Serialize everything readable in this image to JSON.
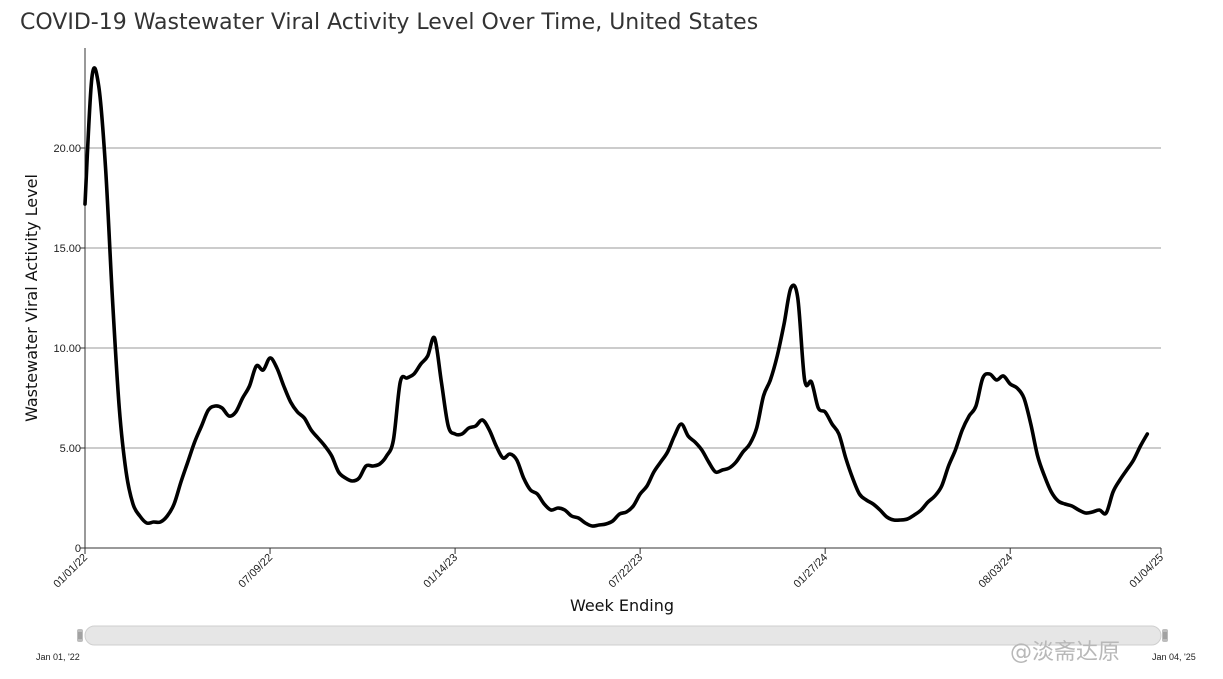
{
  "chart_data": {
    "type": "line",
    "title": "COVID-19 Wastewater Viral Activity Level Over Time, United States",
    "xlabel": "Week Ending",
    "ylabel": "Wastewater Viral Activity Level",
    "ylim": [
      0,
      25
    ],
    "yticks": [
      0,
      5,
      10,
      15,
      20
    ],
    "ytick_labels": [
      "0",
      "5.00",
      "10.00",
      "15.00",
      "20.00"
    ],
    "xlim": [
      "2022-01-01",
      "2025-01-04"
    ],
    "xticks": [
      "2022-01-01",
      "2022-07-09",
      "2023-01-14",
      "2023-07-22",
      "2024-01-27",
      "2024-08-03",
      "2025-01-04"
    ],
    "xtick_labels": [
      "01/01/22",
      "07/09/22",
      "01/14/23",
      "07/22/23",
      "01/27/24",
      "08/03/24",
      "01/04/25"
    ],
    "grid": true,
    "series": [
      {
        "name": "",
        "color": "#000000",
        "points": [
          [
            "2022-01-01",
            17.2
          ],
          [
            "2022-01-08",
            23.5
          ],
          [
            "2022-01-15",
            23.1
          ],
          [
            "2022-01-22",
            19.0
          ],
          [
            "2022-01-29",
            12.5
          ],
          [
            "2022-02-05",
            7.0
          ],
          [
            "2022-02-12",
            3.8
          ],
          [
            "2022-02-19",
            2.2
          ],
          [
            "2022-02-26",
            1.6
          ],
          [
            "2022-03-05",
            1.25
          ],
          [
            "2022-03-12",
            1.3
          ],
          [
            "2022-03-19",
            1.3
          ],
          [
            "2022-03-26",
            1.6
          ],
          [
            "2022-04-02",
            2.2
          ],
          [
            "2022-04-09",
            3.3
          ],
          [
            "2022-04-16",
            4.3
          ],
          [
            "2022-04-23",
            5.3
          ],
          [
            "2022-04-30",
            6.1
          ],
          [
            "2022-05-07",
            6.9
          ],
          [
            "2022-05-14",
            7.1
          ],
          [
            "2022-05-21",
            7.0
          ],
          [
            "2022-05-28",
            6.6
          ],
          [
            "2022-06-04",
            6.8
          ],
          [
            "2022-06-11",
            7.5
          ],
          [
            "2022-06-18",
            8.1
          ],
          [
            "2022-06-25",
            9.1
          ],
          [
            "2022-07-02",
            8.9
          ],
          [
            "2022-07-09",
            9.5
          ],
          [
            "2022-07-16",
            9.0
          ],
          [
            "2022-07-23",
            8.1
          ],
          [
            "2022-07-30",
            7.3
          ],
          [
            "2022-08-06",
            6.8
          ],
          [
            "2022-08-13",
            6.5
          ],
          [
            "2022-08-20",
            5.9
          ],
          [
            "2022-08-27",
            5.5
          ],
          [
            "2022-09-03",
            5.1
          ],
          [
            "2022-09-10",
            4.6
          ],
          [
            "2022-09-17",
            3.8
          ],
          [
            "2022-09-24",
            3.5
          ],
          [
            "2022-10-01",
            3.35
          ],
          [
            "2022-10-08",
            3.5
          ],
          [
            "2022-10-15",
            4.1
          ],
          [
            "2022-10-22",
            4.1
          ],
          [
            "2022-10-29",
            4.2
          ],
          [
            "2022-11-05",
            4.6
          ],
          [
            "2022-11-12",
            5.4
          ],
          [
            "2022-11-19",
            8.3
          ],
          [
            "2022-11-26",
            8.5
          ],
          [
            "2022-12-03",
            8.7
          ],
          [
            "2022-12-10",
            9.2
          ],
          [
            "2022-12-17",
            9.6
          ],
          [
            "2022-12-24",
            10.5
          ],
          [
            "2022-12-31",
            8.3
          ],
          [
            "2023-01-07",
            6.1
          ],
          [
            "2023-01-14",
            5.7
          ],
          [
            "2023-01-21",
            5.7
          ],
          [
            "2023-01-28",
            6.0
          ],
          [
            "2023-02-04",
            6.1
          ],
          [
            "2023-02-11",
            6.4
          ],
          [
            "2023-02-18",
            5.9
          ],
          [
            "2023-02-25",
            5.1
          ],
          [
            "2023-03-04",
            4.5
          ],
          [
            "2023-03-11",
            4.7
          ],
          [
            "2023-03-18",
            4.4
          ],
          [
            "2023-03-25",
            3.5
          ],
          [
            "2023-04-01",
            2.9
          ],
          [
            "2023-04-08",
            2.7
          ],
          [
            "2023-04-15",
            2.2
          ],
          [
            "2023-04-22",
            1.9
          ],
          [
            "2023-04-29",
            2.0
          ],
          [
            "2023-05-06",
            1.9
          ],
          [
            "2023-05-13",
            1.6
          ],
          [
            "2023-05-20",
            1.5
          ],
          [
            "2023-05-27",
            1.25
          ],
          [
            "2023-06-03",
            1.1
          ],
          [
            "2023-06-10",
            1.15
          ],
          [
            "2023-06-17",
            1.2
          ],
          [
            "2023-06-24",
            1.35
          ],
          [
            "2023-07-01",
            1.7
          ],
          [
            "2023-07-08",
            1.8
          ],
          [
            "2023-07-15",
            2.1
          ],
          [
            "2023-07-22",
            2.7
          ],
          [
            "2023-07-29",
            3.1
          ],
          [
            "2023-08-05",
            3.8
          ],
          [
            "2023-08-12",
            4.3
          ],
          [
            "2023-08-19",
            4.8
          ],
          [
            "2023-08-26",
            5.6
          ],
          [
            "2023-09-02",
            6.2
          ],
          [
            "2023-09-09",
            5.6
          ],
          [
            "2023-09-16",
            5.3
          ],
          [
            "2023-09-23",
            4.9
          ],
          [
            "2023-09-30",
            4.3
          ],
          [
            "2023-10-07",
            3.8
          ],
          [
            "2023-10-14",
            3.9
          ],
          [
            "2023-10-21",
            4.0
          ],
          [
            "2023-10-28",
            4.3
          ],
          [
            "2023-11-04",
            4.8
          ],
          [
            "2023-11-11",
            5.2
          ],
          [
            "2023-11-18",
            6.0
          ],
          [
            "2023-11-25",
            7.6
          ],
          [
            "2023-12-02",
            8.4
          ],
          [
            "2023-12-09",
            9.6
          ],
          [
            "2023-12-16",
            11.2
          ],
          [
            "2023-12-23",
            13.0
          ],
          [
            "2023-12-30",
            12.5
          ],
          [
            "2024-01-06",
            8.4
          ],
          [
            "2024-01-13",
            8.3
          ],
          [
            "2024-01-20",
            7.0
          ],
          [
            "2024-01-27",
            6.8
          ],
          [
            "2024-02-03",
            6.2
          ],
          [
            "2024-02-10",
            5.7
          ],
          [
            "2024-02-17",
            4.5
          ],
          [
            "2024-02-24",
            3.5
          ],
          [
            "2024-03-02",
            2.7
          ],
          [
            "2024-03-09",
            2.4
          ],
          [
            "2024-03-16",
            2.2
          ],
          [
            "2024-03-23",
            1.9
          ],
          [
            "2024-03-30",
            1.55
          ],
          [
            "2024-04-06",
            1.4
          ],
          [
            "2024-04-13",
            1.4
          ],
          [
            "2024-04-20",
            1.45
          ],
          [
            "2024-04-27",
            1.65
          ],
          [
            "2024-05-04",
            1.9
          ],
          [
            "2024-05-11",
            2.3
          ],
          [
            "2024-05-18",
            2.6
          ],
          [
            "2024-05-25",
            3.1
          ],
          [
            "2024-06-01",
            4.1
          ],
          [
            "2024-06-08",
            4.9
          ],
          [
            "2024-06-15",
            5.9
          ],
          [
            "2024-06-22",
            6.6
          ],
          [
            "2024-06-29",
            7.1
          ],
          [
            "2024-07-06",
            8.5
          ],
          [
            "2024-07-13",
            8.7
          ],
          [
            "2024-07-20",
            8.4
          ],
          [
            "2024-07-27",
            8.6
          ],
          [
            "2024-08-03",
            8.2
          ],
          [
            "2024-08-10",
            8.0
          ],
          [
            "2024-08-17",
            7.5
          ],
          [
            "2024-08-24",
            6.2
          ],
          [
            "2024-08-31",
            4.6
          ],
          [
            "2024-09-07",
            3.6
          ],
          [
            "2024-09-14",
            2.8
          ],
          [
            "2024-09-21",
            2.35
          ],
          [
            "2024-09-28",
            2.2
          ],
          [
            "2024-10-05",
            2.1
          ],
          [
            "2024-10-12",
            1.9
          ],
          [
            "2024-10-19",
            1.75
          ],
          [
            "2024-10-26",
            1.8
          ],
          [
            "2024-11-02",
            1.9
          ],
          [
            "2024-11-09",
            1.75
          ],
          [
            "2024-11-16",
            2.8
          ],
          [
            "2024-11-23",
            3.4
          ],
          [
            "2024-11-30",
            3.9
          ],
          [
            "2024-12-07",
            4.4
          ],
          [
            "2024-12-14",
            5.1
          ],
          [
            "2024-12-21",
            5.7
          ]
        ]
      }
    ]
  },
  "range_selector": {
    "start_label": "Jan 01, '22",
    "end_label": "Jan 04, '25"
  },
  "watermark": "@淡斋达原",
  "colors": {
    "line": "#000000",
    "grid": "#9a9a9a",
    "slider_track": "#e6e6e6"
  }
}
